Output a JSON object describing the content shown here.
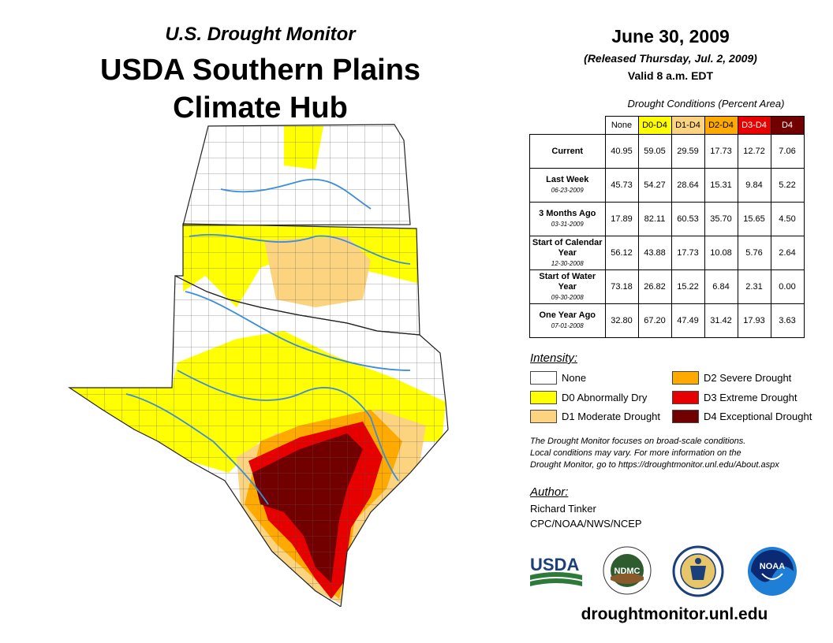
{
  "header": {
    "supertitle": "U.S. Drought Monitor",
    "title_line1": "USDA Southern Plains",
    "title_line2": "Climate Hub",
    "date": "June 30, 2009",
    "released": "(Released Thursday, Jul. 2, 2009)",
    "valid": "Valid 8 a.m. EDT"
  },
  "table": {
    "caption": "Drought Conditions (Percent Area)",
    "columns": [
      "None",
      "D0-D4",
      "D1-D4",
      "D2-D4",
      "D3-D4",
      "D4"
    ],
    "column_colors": [
      "#ffffff",
      "#ffff00",
      "#fcd37f",
      "#ffaa00",
      "#e60000",
      "#730000"
    ],
    "rows": [
      {
        "label": "Current",
        "date": "",
        "values": [
          "40.95",
          "59.05",
          "29.59",
          "17.73",
          "12.72",
          "7.06"
        ]
      },
      {
        "label": "Last Week",
        "date": "06-23-2009",
        "values": [
          "45.73",
          "54.27",
          "28.64",
          "15.31",
          "9.84",
          "5.22"
        ]
      },
      {
        "label": "3 Months Ago",
        "date": "03-31-2009",
        "values": [
          "17.89",
          "82.11",
          "60.53",
          "35.70",
          "15.65",
          "4.50"
        ]
      },
      {
        "label": "Start of Calendar Year",
        "date": "12-30-2008",
        "values": [
          "56.12",
          "43.88",
          "17.73",
          "10.08",
          "5.76",
          "2.64"
        ]
      },
      {
        "label": "Start of Water Year",
        "date": "09-30-2008",
        "values": [
          "73.18",
          "26.82",
          "15.22",
          "6.84",
          "2.31",
          "0.00"
        ]
      },
      {
        "label": "One Year Ago",
        "date": "07-01-2008",
        "values": [
          "32.80",
          "67.20",
          "47.49",
          "31.42",
          "17.93",
          "3.63"
        ]
      }
    ]
  },
  "legend": {
    "title": "Intensity:",
    "items": [
      {
        "label": "None",
        "color": "#ffffff"
      },
      {
        "label": "D0 Abnormally Dry",
        "color": "#ffff00"
      },
      {
        "label": "D1 Moderate Drought",
        "color": "#fcd37f"
      },
      {
        "label": "D2 Severe Drought",
        "color": "#ffaa00"
      },
      {
        "label": "D3 Extreme Drought",
        "color": "#e60000"
      },
      {
        "label": "D4 Exceptional Drought",
        "color": "#730000"
      }
    ]
  },
  "note": {
    "line1": "The Drought Monitor focuses on broad-scale conditions.",
    "line2": "Local conditions may vary. For more information on the",
    "line3": "Drought Monitor, go to https://droughtmonitor.unl.edu/About.aspx"
  },
  "author": {
    "title": "Author:",
    "name": "Richard Tinker",
    "org": "CPC/NOAA/NWS/NCEP"
  },
  "logos": {
    "usda": "USDA",
    "ndmc": "NDMC",
    "noaa": "NOAA"
  },
  "website": "droughtmonitor.unl.edu",
  "colors": {
    "none": "#ffffff",
    "d0": "#ffff00",
    "d1": "#fcd37f",
    "d2": "#ffaa00",
    "d3": "#e60000",
    "d4": "#730000",
    "river": "#3a8fd8"
  }
}
